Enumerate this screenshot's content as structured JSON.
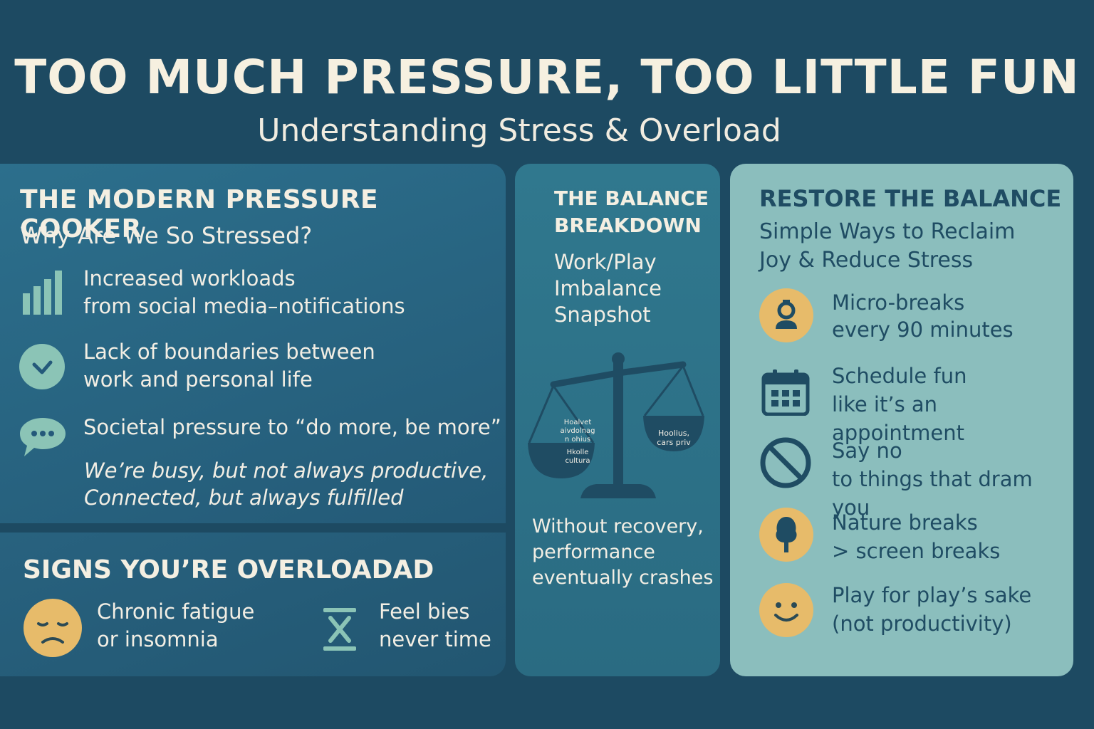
{
  "header": {
    "title": "TOO MUCH PRESSURE, TOO LITTLE FUN",
    "subtitle": "Understanding Stress & Overload"
  },
  "pressure": {
    "heading": "THE MODERN PRESSURE COOKER",
    "subheading": "Why Are We So Stressed?",
    "items": [
      {
        "icon": "bar-chart-icon",
        "line1": "Increased workloads",
        "line2": "from social media–notifications"
      },
      {
        "icon": "checkmark-icon",
        "line1": "Lack of boundaries between",
        "line2": "work and personal life"
      },
      {
        "icon": "chat-bubble-icon",
        "line1": "Societal pressure to “do more, be more”",
        "line2": ""
      }
    ],
    "quote_line1": "We’re busy, but not always productive,",
    "quote_line2": "Connected, but always fulfilled"
  },
  "signs": {
    "heading": "SIGNS YOU’RE OVERLOADAD",
    "items": [
      {
        "icon": "sad-face-icon",
        "line1": "Chronic fatigue",
        "line2": "or insomnia"
      },
      {
        "icon": "hourglass-icon",
        "line1": "Feel bies",
        "line2": "never time"
      }
    ]
  },
  "balance": {
    "heading_line1": "THE BALANCE",
    "heading_line2": "BREAKDOWN",
    "sub_line1": "Work/Play",
    "sub_line2": "Imbalance",
    "sub_line3": "Snapshot",
    "left_pan_line1": "Hoalvet",
    "left_pan_line2": "aivdolnag",
    "left_pan_line3": "n ohius",
    "left_pan_line4": "Hkolle",
    "left_pan_line5": "cultura",
    "right_pan_line1": "Hoolius,",
    "right_pan_line2": "cars priv",
    "footer_line1": "Without recovery,",
    "footer_line2": "performance",
    "footer_line3": "eventually crashes"
  },
  "restore": {
    "heading": "RESTORE THE BALANCE",
    "sub_line1": "Simple Ways to Reclaim",
    "sub_line2": "Joy & Reduce Stress",
    "items": [
      {
        "icon": "person-icon",
        "line1": "Micro-breaks",
        "line2": "every 90 minutes"
      },
      {
        "icon": "calendar-icon",
        "line1": "Schedule fun",
        "line2": "like it’s an appointment"
      },
      {
        "icon": "no-sign-icon",
        "line1": "Say no",
        "line2": "to things that dram you"
      },
      {
        "icon": "tree-icon",
        "line1": "Nature breaks",
        "line2": "> screen breaks"
      },
      {
        "icon": "smiley-icon",
        "line1": "Play for play’s sake",
        "line2": "(not productivity)"
      }
    ]
  },
  "colors": {
    "background": "#1d4a62",
    "cream": "#f4efe2",
    "accent_yellow": "#e7bb6a",
    "mint": "#8bbebd",
    "navy": "#1f4c63"
  }
}
